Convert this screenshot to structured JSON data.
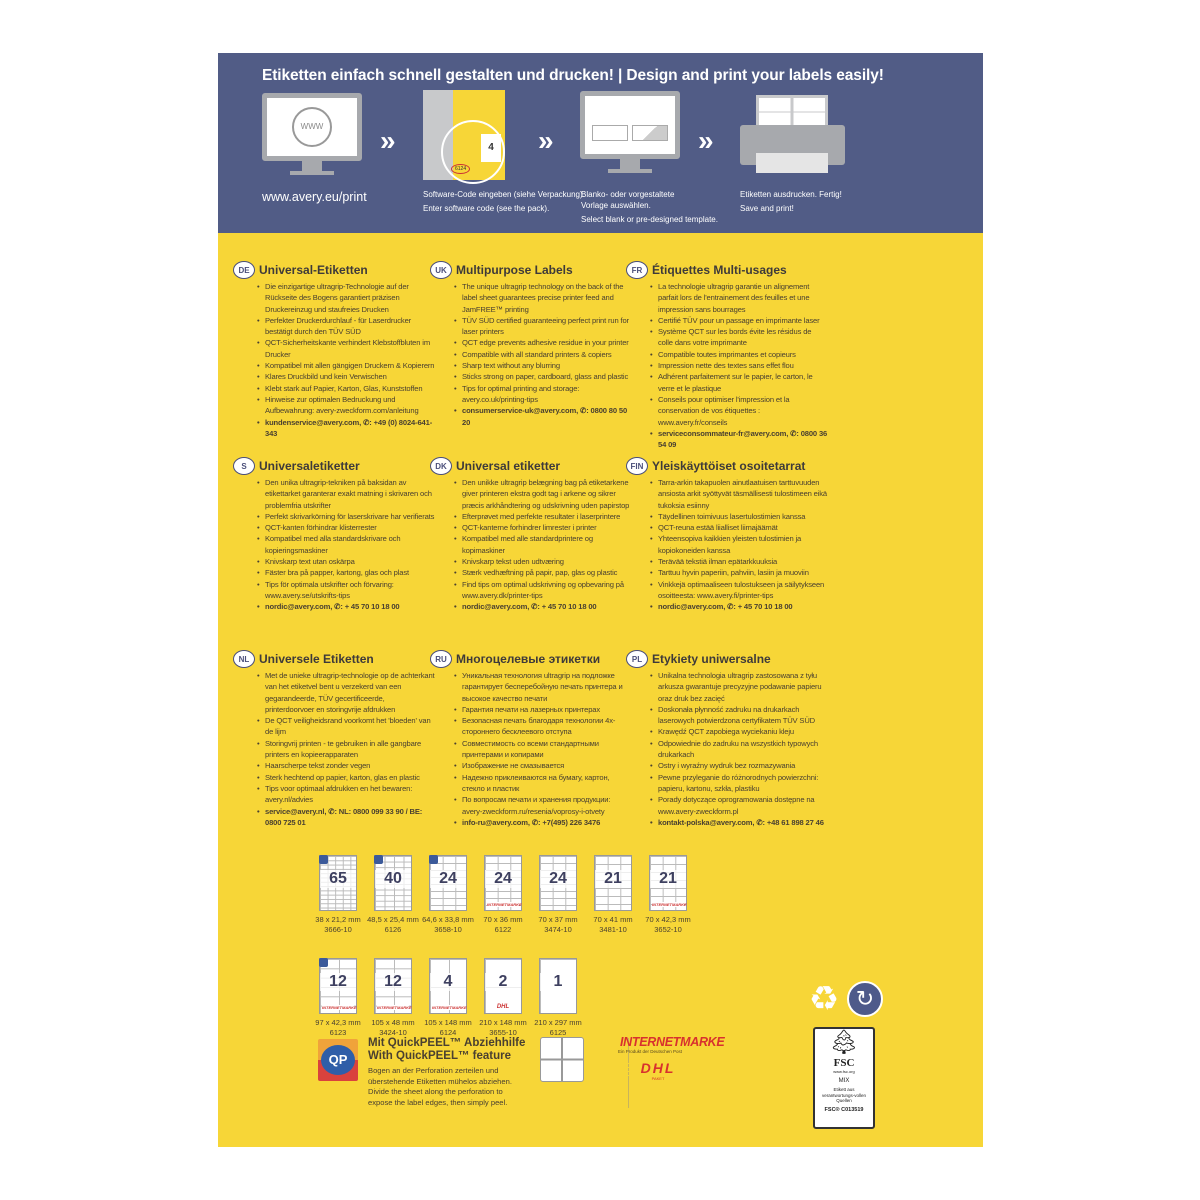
{
  "colors": {
    "header": "#515c86",
    "panel": "#f7d637",
    "badge": "#4b4f7a"
  },
  "header": {
    "title": "Etiketten einfach schnell gestalten und drucken! | Design and print your labels easily!",
    "url": "www.avery.eu/print",
    "steps": [
      {
        "de": "Software-Code eingeben (siehe Verpackung).",
        "en": "Enter software code (see the pack).",
        "pack_number": "4",
        "pack_code": "6124"
      },
      {
        "de": "Blanko- oder vorgestaltete Vorlage auswählen.",
        "en": "Select blank or pre-designed template."
      },
      {
        "de": "Etiketten ausdrucken. Fertig!",
        "en": "Save and print!"
      }
    ],
    "chevron": "»",
    "www": "WWW"
  },
  "sections": [
    {
      "code": "DE",
      "title": "Universal-Etiketten",
      "items": [
        "Die einzigartige ultragrip-Technologie auf der Rückseite des Bogens garantiert präzisen Druckereinzug und staufreies Drucken",
        "Perfekter Druckerdurchlauf - für Laserdrucker bestätigt durch den TÜV SÜD",
        "QCT-Sicherheitskante verhindert Klebstoffbluten im Drucker",
        "Kompatibel mit allen gängigen Druckern & Kopierern",
        "Klares Druckbild und kein Verwischen",
        "Klebt stark auf Papier, Karton, Glas, Kunststoffen",
        "Hinweise zur optimalen Bedruckung und Aufbewahrung: avery-zweckform.com/anleitung",
        "kundenservice@avery.com, ✆: +49 (0) 8024-641-343"
      ]
    },
    {
      "code": "UK",
      "title": "Multipurpose Labels",
      "items": [
        "The unique ultragrip technology on the back of the label sheet guarantees precise printer feed and JamFREE™ printing",
        "TÜV SÜD certified guaranteeing perfect print run for laser printers",
        "QCT edge prevents adhesive residue in your printer",
        "Compatible with all standard printers & copiers",
        "Sharp text without any blurring",
        "Sticks strong on paper, cardboard, glass and plastic",
        "Tips for optimal printing and storage: avery.co.uk/printing-tips",
        "consumerservice-uk@avery.com, ✆: 0800 80 50 20"
      ]
    },
    {
      "code": "FR",
      "title": "Étiquettes Multi-usages",
      "items": [
        "La technologie ultragrip garantie un alignement parfait lors de l'entrainement des feuilles et une impression sans bourrages",
        "Certifié TÜV pour un passage en imprimante laser",
        "Système QCT sur les bords évite les résidus de colle dans votre imprimante",
        "Compatible toutes imprimantes et copieurs",
        "Impression nette des textes sans effet flou",
        "Adhérent parfaitement sur le papier, le carton, le verre et le plastique",
        "Conseils pour optimiser l'impression et la conservation de vos étiquettes : www.avery.fr/conseils",
        "serviceconsommateur-fr@avery.com, ✆: 0800 36 54 09"
      ]
    },
    {
      "code": "S",
      "title": "Universaletiketter",
      "items": [
        "Den unika ultragrip-tekniken på baksidan av etikettarket garanterar exakt matning i skrivaren och problemfria utskrifter",
        "Perfekt skrivarkörning för laserskrivare har verifierats",
        "QCT-kanten förhindrar klisterrester",
        "Kompatibel med alla standardskrivare och kopieringsmaskiner",
        "Knivskarp text utan oskärpa",
        "Fäster bra på papper, kartong, glas och plast",
        "Tips för optimala utskrifter och förvaring: www.avery.se/utskrifts-tips",
        "nordic@avery.com, ✆: + 45 70 10 18 00"
      ]
    },
    {
      "code": "DK",
      "title": "Universal etiketter",
      "items": [
        "Den unikke ultragrip belægning bag på etiketarkene giver printeren ekstra godt tag i arkene og sikrer præcis arkhåndtering og udskrivning uden papirstop",
        "Efterprøvet med perfekte resultater i laserprintere",
        "QCT-kanterne forhindrer limrester i printer",
        "Kompatibel med alle standardprintere og kopimaskiner",
        "Knivskarp tekst uden udtværing",
        "Stærk vedhæftning på papir, pap, glas og plastic",
        "Find tips om optimal udskrivning og opbevaring på www.avery.dk/printer-tips",
        "nordic@avery.com, ✆: + 45 70 10 18 00"
      ]
    },
    {
      "code": "FIN",
      "title": "Yleiskäyttöiset osoitetarrat",
      "items": [
        "Tarra-arkin takapuolen ainutlaatuisen tarttuvuuden ansiosta arkit syöttyvät täsmällisesti tulostimeen eikä tukoksia esiinny",
        "Täydellinen toimivuus lasertulostimien kanssa",
        "QCT-reuna estää liialliset liimajäämät",
        "Yhteensopiva kaikkien yleisten tulostimien ja kopiokoneiden kanssa",
        "Terävää tekstiä ilman epätarkkuuksia",
        "Tarttuu hyvin paperiin, pahviin, lasiin ja muoviin",
        "Vinkkejä optimaaliseen tulostukseen ja säilytykseen osoitteesta: www.avery.fi/printer-tips",
        "nordic@avery.com, ✆: + 45 70 10 18 00"
      ]
    },
    {
      "code": "NL",
      "title": "Universele Etiketten",
      "items": [
        "Met de unieke ultragrip-technologie op de achterkant van het etiketvel bent u verzekerd van een gegarandeerde, TÜV gecertificeerde, printerdoorvoer en storingvrije afdrukken",
        "De QCT veiligheidsrand voorkomt het 'bloeden' van de lijm",
        "Storingvrij printen - te gebruiken in alle gangbare printers en kopieerapparaten",
        "Haarscherpe tekst zonder vegen",
        "Sterk hechtend op papier, karton, glas en plastic",
        "Tips voor optimaal afdrukken en het bewaren: avery.nl/advies",
        "service@avery.nl, ✆: NL: 0800 099 33 90 / BE: 0800 725 01"
      ]
    },
    {
      "code": "RU",
      "title": "Многоцелевые этикетки",
      "items": [
        "Уникальная технология ultragrip на подложке гарантирует бесперебойную печать принтера и высокое качество печати",
        "Гарантия печати на лазерных принтерах",
        "Безопасная печать благодаря технологии 4х-стороннего бесклеевого отступа",
        "Совместимость со всеми стандартными принтерами и копирами",
        "Изображение не смазывается",
        "Надежно приклеиваются на бумагу, картон, стекло и пластик",
        "По вопросам печати и хранения продукции: avery-zweckform.ru/resenia/voprosy-i-otvety",
        "info-ru@avery.com, ✆: +7(495) 226 3476"
      ]
    },
    {
      "code": "PL",
      "title": "Etykiety uniwersalne",
      "items": [
        "Unikalna technologia ultragrip zastosowana z tyłu arkusza gwarantuje precyzyjne podawanie papieru oraz druk bez zacięć",
        "Doskonała płynność zadruku na drukarkach laserowych potwierdzona certyfikatem TÜV SÜD",
        "Krawędź QCT zapobiega wyciekaniu kleju",
        "Odpowiednie do zadruku na wszystkich typowych drukarkach",
        "Ostry i wyraźny wydruk bez rozmazywania",
        "Pewne przyleganie do różnorodnych powierzchni: papieru, kartonu, szkła, plastiku",
        "Porady dotyczące oprogramowania dostępne na www.avery-zweckform.pl",
        "kontakt-polska@avery.com, ✆: +48 61 898 27 46"
      ]
    }
  ],
  "labels": [
    {
      "count": "65",
      "size": "38 x 21,2 mm",
      "code": "3666-10",
      "qp": true,
      "rows": 13,
      "cols": 5
    },
    {
      "count": "40",
      "size": "48,5 x 25,4 mm",
      "code": "6126",
      "qp": true,
      "rows": 10,
      "cols": 4
    },
    {
      "count": "24",
      "size": "64,6 x 33,8 mm",
      "code": "3658-10",
      "qp": true,
      "rows": 8,
      "cols": 3
    },
    {
      "count": "24",
      "size": "70 x 36 mm",
      "code": "6122",
      "internetmarke": true,
      "rows": 8,
      "cols": 3
    },
    {
      "count": "24",
      "size": "70 x 37 mm",
      "code": "3474-10",
      "rows": 8,
      "cols": 3
    },
    {
      "count": "21",
      "size": "70 x 41 mm",
      "code": "3481-10",
      "rows": 7,
      "cols": 3
    },
    {
      "count": "21",
      "size": "70 x 42,3 mm",
      "code": "3652-10",
      "internetmarke": true,
      "rows": 7,
      "cols": 3
    },
    {
      "count": "12",
      "size": "97 x 42,3 mm",
      "code": "6123",
      "qp": true,
      "internetmarke": true,
      "rows": 6,
      "cols": 2
    },
    {
      "count": "12",
      "size": "105 x 48 mm",
      "code": "3424-10",
      "internetmarke": true,
      "rows": 6,
      "cols": 2
    },
    {
      "count": "4",
      "size": "105 x 148 mm",
      "code": "6124",
      "internetmarke": true,
      "rows": 2,
      "cols": 2
    },
    {
      "count": "2",
      "size": "210 x 148 mm",
      "code": "3655-10",
      "dhl": true,
      "rows": 2,
      "cols": 1
    },
    {
      "count": "1",
      "size": "210 x 297 mm",
      "code": "6125",
      "rows": 1,
      "cols": 1
    }
  ],
  "internetmarke_small": "INTERNETMARKE",
  "quickpeel": {
    "badge": "QP",
    "title_de": "Mit QuickPEEL™ Abziehhilfe",
    "title_en": "With QuickPEEL™ feature",
    "text_de": "Bogen an der Perforation zerteilen und überstehende Etiketten mühelos abziehen.",
    "text_en": "Divide the sheet along the perforation to expose the label edges, then simply peel."
  },
  "brands": {
    "internetmarke": "INTERNETMARKE",
    "internetmarke_sub": "Ein Produkt der Deutschen Post",
    "dhl": "DHL",
    "dhl_sub": "PAKET"
  },
  "fsc": {
    "name": "FSC",
    "site": "www.fsc.org",
    "mix": "MIX",
    "text": "Etikett aus verantwortungs-vollen Quellen",
    "code": "FSC® C013519"
  },
  "icons": [
    "recycle-icon",
    "green-dot-icon"
  ]
}
